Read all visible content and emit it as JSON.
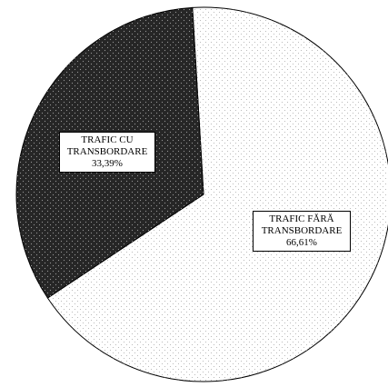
{
  "chart_data": {
    "type": "pie",
    "categories": [
      "TRAFIC FĂRĂ TRANSBORDARE",
      "TRAFIC CU TRANSBORDARE"
    ],
    "values": [
      66.61,
      33.39
    ],
    "value_labels": [
      "66,61%",
      "33,39%"
    ],
    "colors": [
      "#ffffff",
      "#262626"
    ]
  }
}
